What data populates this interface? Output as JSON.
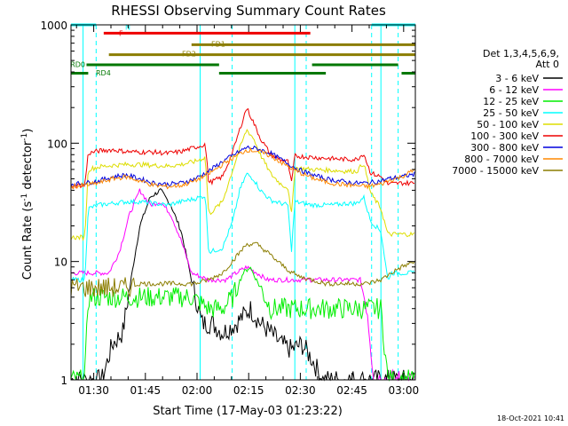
{
  "chart_data": {
    "type": "line",
    "title": "RHESSI Observing Summary Count Rates",
    "xlabel": "Start Time (17-May-03 01:23:22)",
    "ylabel_main": "Count Rate (s",
    "ylabel_sup1": "-1",
    "ylabel_mid": " detector",
    "ylabel_sup2": "-1",
    "ylabel_end": ")",
    "yscale": "log",
    "ylim": [
      1,
      1000
    ],
    "xlim_minutes": [
      0,
      100
    ],
    "x_ticks": [
      {
        "t": 6.6,
        "label": "01:30"
      },
      {
        "t": 21.6,
        "label": "01:45"
      },
      {
        "t": 36.6,
        "label": "02:00"
      },
      {
        "t": 51.6,
        "label": "02:15"
      },
      {
        "t": 66.6,
        "label": "02:30"
      },
      {
        "t": 81.6,
        "label": "02:45"
      },
      {
        "t": 96.6,
        "label": "03:00"
      }
    ],
    "y_ticks": [
      {
        "v": 1,
        "label": "1"
      },
      {
        "v": 10,
        "label": "10"
      },
      {
        "v": 100,
        "label": "100"
      },
      {
        "v": 1000,
        "label": "1000"
      }
    ],
    "legend_header": [
      "Det 1,3,4,5,6,9,",
      "Att 0"
    ],
    "legend_placement": "right",
    "series": [
      {
        "name": "3 - 6 keV",
        "color": "#000000",
        "pts": [
          [
            0,
            1
          ],
          [
            9,
            1
          ],
          [
            12,
            2
          ],
          [
            15,
            2.5
          ],
          [
            18,
            9
          ],
          [
            20,
            20
          ],
          [
            23,
            35
          ],
          [
            26,
            40
          ],
          [
            29,
            30
          ],
          [
            32,
            18
          ],
          [
            35,
            7
          ],
          [
            38,
            3
          ],
          [
            41,
            3
          ],
          [
            44,
            2.5
          ],
          [
            48,
            3
          ],
          [
            52,
            4
          ],
          [
            55,
            3
          ],
          [
            58,
            2.5
          ],
          [
            61,
            2
          ],
          [
            64,
            1.8
          ],
          [
            67,
            2
          ],
          [
            70,
            1.5
          ],
          [
            73,
            1
          ],
          [
            100,
            1
          ]
        ]
      },
      {
        "name": "6 - 12 keV",
        "color": "#ff00ff",
        "pts": [
          [
            0,
            8
          ],
          [
            8,
            8
          ],
          [
            11,
            8
          ],
          [
            14,
            12
          ],
          [
            17,
            25
          ],
          [
            20,
            40
          ],
          [
            23,
            30
          ],
          [
            26,
            32
          ],
          [
            29,
            25
          ],
          [
            32,
            15
          ],
          [
            35,
            8
          ],
          [
            40,
            7
          ],
          [
            45,
            7
          ],
          [
            48,
            8
          ],
          [
            51,
            9
          ],
          [
            54,
            8
          ],
          [
            57,
            7
          ],
          [
            61,
            7
          ],
          [
            66,
            7
          ],
          [
            71,
            7
          ],
          [
            76,
            7
          ],
          [
            80,
            7
          ],
          [
            84,
            7
          ],
          [
            86,
            4
          ],
          [
            88,
            1
          ],
          [
            100,
            1
          ]
        ]
      },
      {
        "name": "12 - 25 keV",
        "color": "#00ee00",
        "pts": [
          [
            0,
            1
          ],
          [
            4,
            1
          ],
          [
            5,
            5
          ],
          [
            10,
            5
          ],
          [
            15,
            5
          ],
          [
            20,
            5
          ],
          [
            25,
            5
          ],
          [
            30,
            5
          ],
          [
            35,
            5
          ],
          [
            40,
            4
          ],
          [
            44,
            4
          ],
          [
            47,
            5
          ],
          [
            50,
            8
          ],
          [
            52,
            9
          ],
          [
            55,
            6
          ],
          [
            58,
            4
          ],
          [
            61,
            4
          ],
          [
            65,
            4
          ],
          [
            70,
            4
          ],
          [
            75,
            4
          ],
          [
            80,
            4
          ],
          [
            84,
            4
          ],
          [
            88,
            4
          ],
          [
            90,
            4
          ],
          [
            92,
            1
          ],
          [
            100,
            1
          ]
        ]
      },
      {
        "name": "25 - 50 keV",
        "color": "#00ffff",
        "pts": [
          [
            0,
            7
          ],
          [
            4,
            7
          ],
          [
            5,
            28
          ],
          [
            8,
            30
          ],
          [
            12,
            31
          ],
          [
            16,
            32
          ],
          [
            20,
            32
          ],
          [
            24,
            31
          ],
          [
            28,
            30
          ],
          [
            32,
            32
          ],
          [
            36,
            34
          ],
          [
            39,
            36
          ],
          [
            40,
            12
          ],
          [
            44,
            13
          ],
          [
            47,
            22
          ],
          [
            49,
            40
          ],
          [
            51,
            55
          ],
          [
            53,
            50
          ],
          [
            55,
            40
          ],
          [
            58,
            33
          ],
          [
            61,
            31
          ],
          [
            63,
            30
          ],
          [
            64,
            12
          ],
          [
            65,
            32
          ],
          [
            70,
            30
          ],
          [
            76,
            30
          ],
          [
            80,
            31
          ],
          [
            83,
            31
          ],
          [
            85,
            35
          ],
          [
            87,
            22
          ],
          [
            90,
            18
          ],
          [
            92,
            7
          ],
          [
            93,
            8
          ],
          [
            96,
            8
          ],
          [
            100,
            8
          ]
        ]
      },
      {
        "name": "50 - 100 keV",
        "color": "#dddd00",
        "pts": [
          [
            0,
            16
          ],
          [
            4,
            16
          ],
          [
            5,
            60
          ],
          [
            8,
            63
          ],
          [
            12,
            65
          ],
          [
            16,
            66
          ],
          [
            20,
            66
          ],
          [
            24,
            65
          ],
          [
            28,
            64
          ],
          [
            32,
            66
          ],
          [
            36,
            70
          ],
          [
            39,
            76
          ],
          [
            40,
            25
          ],
          [
            44,
            32
          ],
          [
            47,
            60
          ],
          [
            49,
            90
          ],
          [
            51,
            130
          ],
          [
            53,
            110
          ],
          [
            55,
            80
          ],
          [
            58,
            55
          ],
          [
            61,
            45
          ],
          [
            63,
            42
          ],
          [
            64,
            24
          ],
          [
            65,
            62
          ],
          [
            70,
            60
          ],
          [
            76,
            59
          ],
          [
            80,
            58
          ],
          [
            83,
            58
          ],
          [
            85,
            68
          ],
          [
            87,
            38
          ],
          [
            90,
            28
          ],
          [
            92,
            17
          ],
          [
            96,
            17
          ],
          [
            100,
            17
          ]
        ]
      },
      {
        "name": "100 - 300 keV",
        "color": "#ee0000",
        "pts": [
          [
            0,
            44
          ],
          [
            4,
            44
          ],
          [
            5,
            82
          ],
          [
            8,
            86
          ],
          [
            12,
            88
          ],
          [
            16,
            85
          ],
          [
            20,
            84
          ],
          [
            24,
            84
          ],
          [
            28,
            82
          ],
          [
            32,
            85
          ],
          [
            36,
            92
          ],
          [
            39,
            98
          ],
          [
            40,
            46
          ],
          [
            44,
            52
          ],
          [
            47,
            85
          ],
          [
            49,
            130
          ],
          [
            51,
            200
          ],
          [
            53,
            150
          ],
          [
            55,
            110
          ],
          [
            58,
            80
          ],
          [
            61,
            72
          ],
          [
            63,
            70
          ],
          [
            64,
            45
          ],
          [
            65,
            78
          ],
          [
            70,
            76
          ],
          [
            76,
            74
          ],
          [
            80,
            73
          ],
          [
            83,
            73
          ],
          [
            85,
            82
          ],
          [
            87,
            56
          ],
          [
            90,
            52
          ],
          [
            92,
            45
          ],
          [
            96,
            46
          ],
          [
            100,
            46
          ]
        ]
      },
      {
        "name": "300 - 800 keV",
        "color": "#0000dd",
        "pts": [
          [
            0,
            45
          ],
          [
            4,
            46
          ],
          [
            8,
            48
          ],
          [
            12,
            52
          ],
          [
            16,
            54
          ],
          [
            20,
            50
          ],
          [
            24,
            46
          ],
          [
            28,
            45
          ],
          [
            32,
            46
          ],
          [
            36,
            50
          ],
          [
            40,
            58
          ],
          [
            44,
            70
          ],
          [
            48,
            82
          ],
          [
            51,
            92
          ],
          [
            54,
            90
          ],
          [
            58,
            82
          ],
          [
            62,
            70
          ],
          [
            66,
            60
          ],
          [
            70,
            54
          ],
          [
            74,
            50
          ],
          [
            78,
            48
          ],
          [
            82,
            46
          ],
          [
            86,
            46
          ],
          [
            90,
            48
          ],
          [
            92,
            50
          ],
          [
            96,
            52
          ],
          [
            100,
            55
          ]
        ]
      },
      {
        "name": "800 - 7000 keV",
        "color": "#ff8800",
        "pts": [
          [
            0,
            43
          ],
          [
            4,
            44
          ],
          [
            8,
            46
          ],
          [
            12,
            50
          ],
          [
            16,
            52
          ],
          [
            20,
            48
          ],
          [
            24,
            44
          ],
          [
            28,
            43
          ],
          [
            32,
            44
          ],
          [
            36,
            48
          ],
          [
            40,
            55
          ],
          [
            44,
            66
          ],
          [
            48,
            78
          ],
          [
            51,
            88
          ],
          [
            54,
            86
          ],
          [
            58,
            78
          ],
          [
            62,
            66
          ],
          [
            66,
            57
          ],
          [
            70,
            51
          ],
          [
            74,
            47
          ],
          [
            78,
            45
          ],
          [
            82,
            44
          ],
          [
            86,
            43
          ],
          [
            90,
            45
          ],
          [
            92,
            48
          ],
          [
            96,
            52
          ],
          [
            100,
            60
          ]
        ]
      },
      {
        "name": "7000 - 15000 keV",
        "color": "#8b7d00",
        "pts": [
          [
            0,
            6
          ],
          [
            4,
            6
          ],
          [
            8,
            6
          ],
          [
            12,
            6
          ],
          [
            16,
            6
          ],
          [
            20,
            6.5
          ],
          [
            24,
            6.5
          ],
          [
            28,
            6.5
          ],
          [
            32,
            6.5
          ],
          [
            36,
            6.5
          ],
          [
            40,
            7
          ],
          [
            44,
            8
          ],
          [
            48,
            11
          ],
          [
            51,
            14
          ],
          [
            54,
            14
          ],
          [
            57,
            12
          ],
          [
            60,
            10
          ],
          [
            63,
            8.5
          ],
          [
            66,
            7.5
          ],
          [
            70,
            7
          ],
          [
            74,
            6.5
          ],
          [
            78,
            6.5
          ],
          [
            82,
            6.5
          ],
          [
            86,
            6.5
          ],
          [
            90,
            7
          ],
          [
            93,
            8
          ],
          [
            96,
            9
          ],
          [
            100,
            10
          ]
        ]
      }
    ],
    "eclipse_lines_solid": [
      3.5,
      37.5,
      65.0,
      90.0
    ],
    "eclipse_lines_dashed": [
      7.3,
      46.8,
      68.3,
      87.3,
      95.0
    ],
    "annotations": {
      "N": "N",
      "F": "F",
      "FD1": "FD1",
      "FD2": "FD2",
      "RD0": "RD0",
      "RD4": "RD4"
    },
    "flag_bars": [
      {
        "key": "night_1",
        "y": 1000,
        "t0": 0,
        "t1": 7.3,
        "color": "#00ffff"
      },
      {
        "key": "night_2",
        "y": 1000,
        "t0": 87.3,
        "t1": 100,
        "color": "#00ffff"
      },
      {
        "key": "flare",
        "y": 850,
        "t0": 9.5,
        "t1": 69.5,
        "color": "#ee0000"
      },
      {
        "key": "fd1",
        "y": 680,
        "t0": 35,
        "t1": 100,
        "color": "#8b7d00"
      },
      {
        "key": "fd2",
        "y": 560,
        "t0": 11,
        "t1": 100,
        "color": "#8b7d00"
      },
      {
        "key": "rd0_a",
        "y": 460,
        "t0": 4.5,
        "t1": 43,
        "color": "#007700"
      },
      {
        "key": "rd0_b",
        "y": 460,
        "t0": 70,
        "t1": 95,
        "color": "#007700"
      },
      {
        "key": "rd4_a",
        "y": 390,
        "t0": 0,
        "t1": 5,
        "color": "#007700"
      },
      {
        "key": "rd4_b",
        "y": 390,
        "t0": 43,
        "t1": 74,
        "color": "#007700"
      },
      {
        "key": "rd4_c",
        "y": 390,
        "t0": 96,
        "t1": 100,
        "color": "#007700"
      }
    ],
    "footer_date": "18-Oct-2021 10:41"
  }
}
